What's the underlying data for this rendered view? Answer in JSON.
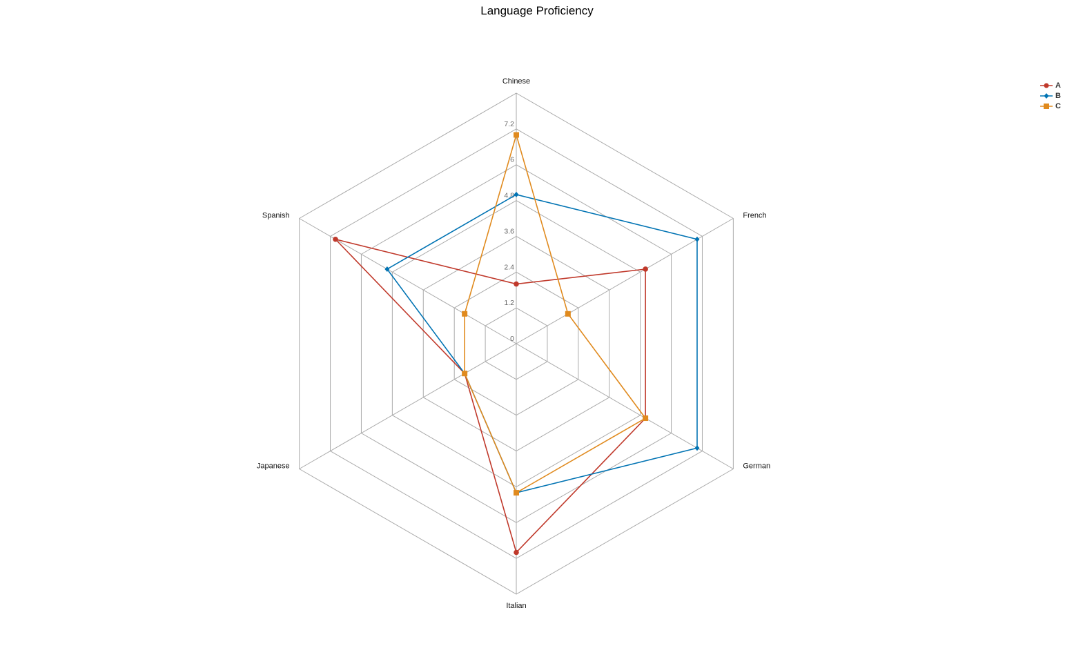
{
  "chart_data": {
    "type": "radar",
    "title": "Language Proficiency",
    "axes": [
      "Chinese",
      "French",
      "German",
      "Italian",
      "Japanese",
      "Spanish"
    ],
    "ticks": [
      "0",
      "1.2",
      "2.4",
      "3.6",
      "4.8",
      "6",
      "7.2"
    ],
    "range": [
      0,
      8.4
    ],
    "grid": true,
    "legend_position": "top-right",
    "series": [
      {
        "name": "A",
        "values": [
          2,
          5,
          5,
          7,
          2,
          7
        ],
        "color": "#c0392b",
        "marker": "circle"
      },
      {
        "name": "B",
        "values": [
          5,
          7,
          7,
          5,
          2,
          5
        ],
        "color": "#0073b3",
        "marker": "diamond"
      },
      {
        "name": "C",
        "values": [
          7,
          2,
          5,
          5,
          2,
          2
        ],
        "color": "#e08a1e",
        "marker": "square"
      }
    ]
  }
}
